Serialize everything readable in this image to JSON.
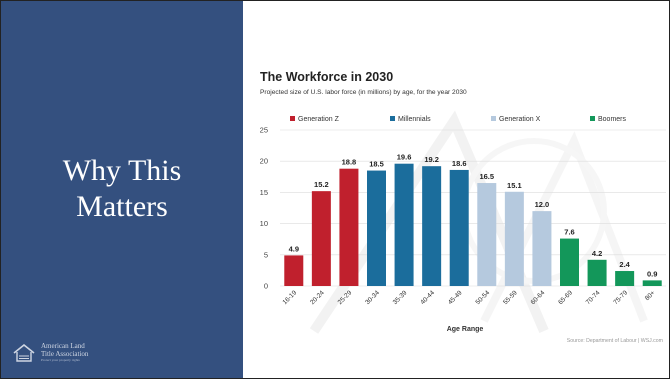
{
  "slide": {
    "title_line1": "Why This",
    "title_line2": "Matters",
    "logo": {
      "line1": "American Land",
      "line2": "Title Association",
      "tagline": "Protect your property rights"
    }
  },
  "colors": {
    "panel": "#34507f",
    "Generation Z": "#c0202d",
    "Millennials": "#1b6d9c",
    "Generation X": "#b5c9de",
    "Boomers": "#13975a"
  },
  "chart_data": {
    "type": "bar",
    "title": "The Workforce in 2030",
    "subtitle": "Projected size of U.S. labor force (in millions) by age, for the year 2030",
    "xlabel": "Age Range",
    "ylabel": "",
    "ylim": [
      0,
      25
    ],
    "yticks": [
      0,
      5,
      10,
      15,
      20,
      25
    ],
    "grid": true,
    "legend_placement": "top",
    "legend": [
      {
        "name": "Generation Z",
        "color": "#c0202d"
      },
      {
        "name": "Millennials",
        "color": "#1b6d9c"
      },
      {
        "name": "Generation X",
        "color": "#b5c9de"
      },
      {
        "name": "Boomers",
        "color": "#13975a"
      }
    ],
    "categories": [
      "16-19",
      "20-24",
      "25-29",
      "30-34",
      "35-39",
      "40-44",
      "45-49",
      "50-54",
      "55-59",
      "60-64",
      "65-69",
      "70-74",
      "75-79",
      "80+"
    ],
    "values": [
      4.9,
      15.2,
      18.8,
      18.5,
      19.6,
      19.2,
      18.6,
      16.5,
      15.1,
      12.0,
      7.6,
      4.2,
      2.4,
      0.9
    ],
    "value_labels": [
      "4.9",
      "15.2",
      "18.8",
      "18.5",
      "19.6",
      "19.2",
      "18.6",
      "16.5",
      "15.1",
      "12.0",
      "7.6",
      "4.2",
      "2.4",
      "0.9"
    ],
    "groups": [
      "Generation Z",
      "Generation Z",
      "Generation Z",
      "Millennials",
      "Millennials",
      "Millennials",
      "Millennials",
      "Generation X",
      "Generation X",
      "Generation X",
      "Boomers",
      "Boomers",
      "Boomers",
      "Boomers"
    ],
    "source": "Source: Department of Labour | WSJ.com"
  }
}
